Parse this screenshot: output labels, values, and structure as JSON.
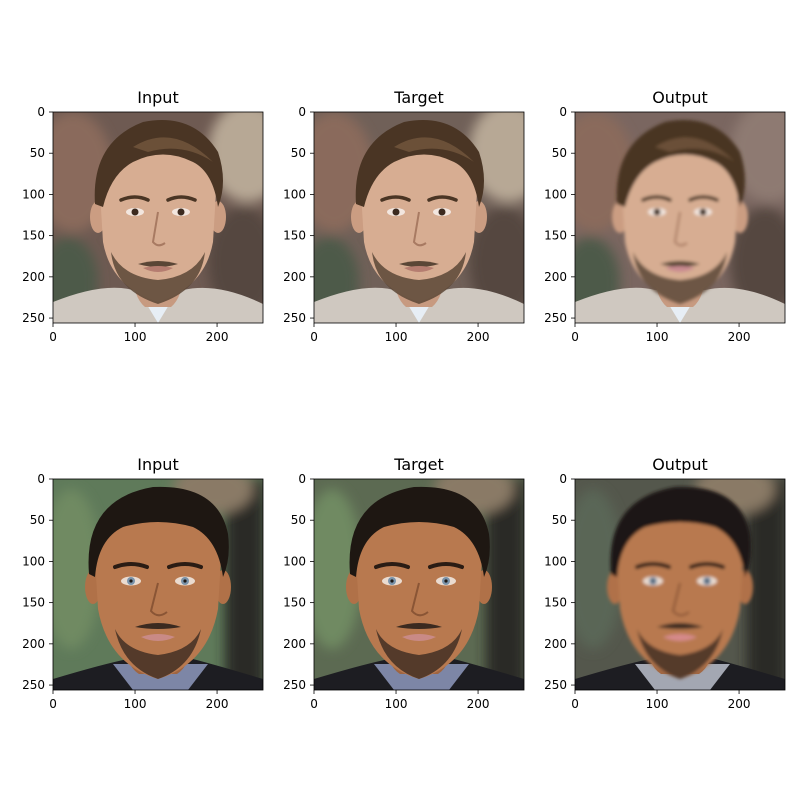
{
  "figure": {
    "panels": [
      {
        "title": "Input",
        "person": "man-light-hair",
        "variant": "input"
      },
      {
        "title": "Target",
        "person": "man-light-hair",
        "variant": "target"
      },
      {
        "title": "Output",
        "person": "man-light-hair",
        "variant": "output"
      },
      {
        "title": "Input",
        "person": "man-dark-hair",
        "variant": "input"
      },
      {
        "title": "Target",
        "person": "man-dark-hair",
        "variant": "target"
      },
      {
        "title": "Output",
        "person": "man-dark-hair",
        "variant": "output"
      }
    ],
    "axes": {
      "x_ticks": [
        "0",
        "100",
        "200"
      ],
      "y_ticks": [
        "0",
        "50",
        "100",
        "150",
        "200",
        "250"
      ],
      "x_values": [
        0,
        100,
        200
      ],
      "y_values": [
        0,
        50,
        100,
        150,
        200,
        250
      ],
      "range": [
        0,
        256
      ]
    },
    "colors": {
      "face1_bg_input": "#6e5a52",
      "face1_bg_target": "#706058",
      "face1_bg_output": "#7a6660",
      "face1_skin": "#d7ad92",
      "face1_hair": "#4a3524",
      "face1_beard": "#5a4636",
      "face1_shirt": "#cfc8c0",
      "face2_bg_input": "#5f7a5a",
      "face2_bg_target": "#5c6a52",
      "face2_bg_output": "#54574c",
      "face2_skin": "#b8794f",
      "face2_hair": "#1e1712",
      "face2_beard": "#3b2a20",
      "face2_shirt": "#7d86a6",
      "eye_blue": "#7a93aa",
      "lips": "#c98a86"
    }
  }
}
